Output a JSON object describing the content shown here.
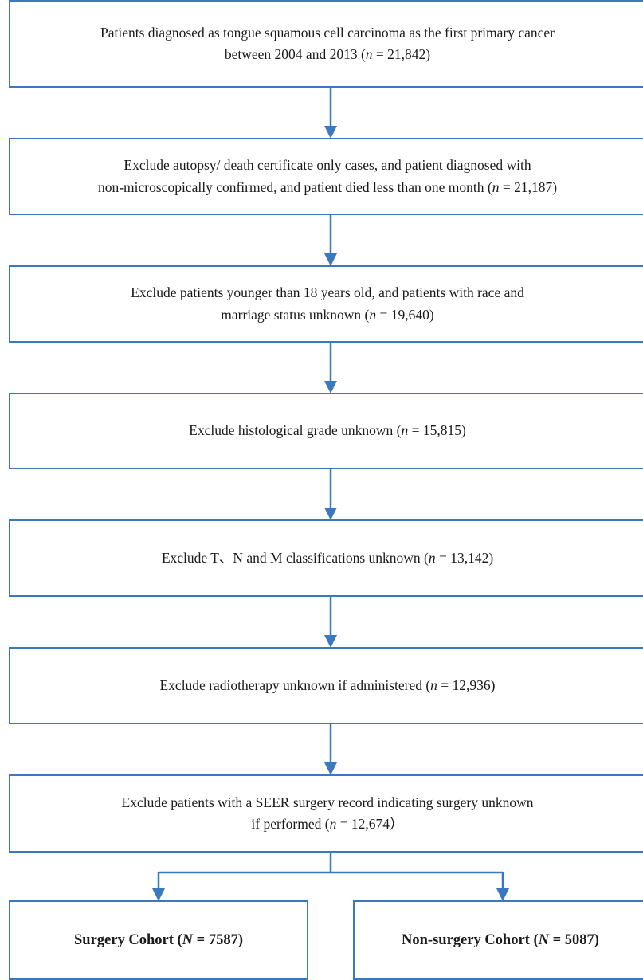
{
  "flow": {
    "colors": {
      "border": "#3a78c0",
      "arrow": "#3a78c0",
      "text": "#1a1a1a"
    },
    "box1": {
      "line1": "Patients diagnosed as tongue squamous cell carcinoma as the first primary cancer",
      "line2_pre": "between 2004 and 2013 (",
      "n_var": "n",
      "line2_post": " = 21,842)"
    },
    "box2": {
      "line1": "Exclude autopsy/ death certificate only cases, and patient diagnosed with",
      "line2_pre": "non-microscopically confirmed, and patient died less than one month (",
      "n_var": "n",
      "line2_post": " = 21,187)"
    },
    "box3": {
      "line1": "Exclude patients younger than 18 years old, and patients with race and",
      "line2_pre": "marriage status unknown (",
      "n_var": "n",
      "line2_post": " = 19,640)"
    },
    "box4": {
      "line1_pre": "Exclude histological grade unknown (",
      "n_var": "n",
      "line1_post": " = 15,815)"
    },
    "box5": {
      "line1_pre": "Exclude T、N and M classifications unknown  (",
      "n_var": "n",
      "line1_post": " = 13,142)"
    },
    "box6": {
      "line1_pre": "Exclude radiotherapy unknown if administered  (",
      "n_var": "n",
      "line1_post": " = 12,936)"
    },
    "box7": {
      "line1": "Exclude patients with a SEER surgery record indicating surgery unknown",
      "line2_pre": "if performed (",
      "n_var": "n",
      "line2_post": " = 12,674）"
    },
    "surgery": {
      "pre": "Surgery Cohort (",
      "n_var": "N",
      "post": " = 7587)"
    },
    "nonsurgery": {
      "pre": "Non-surgery Cohort (",
      "n_var": "N",
      "post": " = 5087)"
    }
  }
}
